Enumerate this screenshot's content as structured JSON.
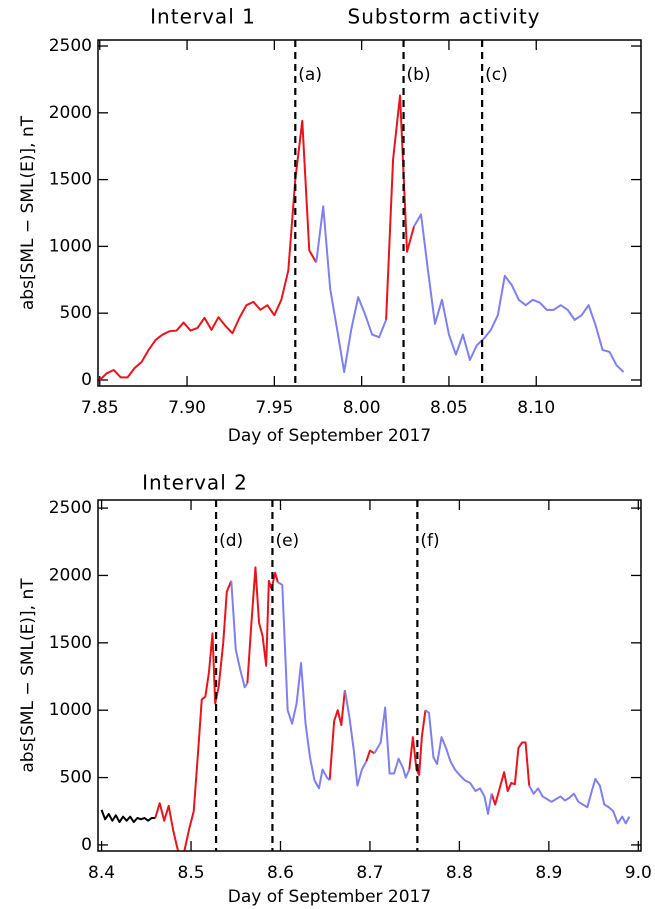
{
  "chart_data": [
    {
      "type": "line",
      "title": "Interval 1",
      "annotation": "Substorm activity",
      "xlabel": "Day of September 2017",
      "ylabel": "abs[SML − SML(E)], nT",
      "xlim": [
        7.849,
        8.16
      ],
      "ylim": [
        -45,
        2545
      ],
      "xticks": [
        7.85,
        {
          "value": 7.9,
          "label": "7.90"
        },
        7.95,
        {
          "value": 8.0,
          "label": "8.00"
        },
        8.05,
        {
          "value": 8.1,
          "label": "8.10"
        }
      ],
      "yticks": [
        0,
        500,
        1000,
        1500,
        2000,
        2500
      ],
      "markers": [
        {
          "x": 7.962,
          "label": "(a)"
        },
        {
          "x": 8.024,
          "label": "(b)"
        },
        {
          "x": 8.069,
          "label": "(c)"
        }
      ],
      "series": [
        {
          "color": "#e8141c",
          "x": [
            7.85,
            7.854,
            7.858,
            7.862,
            7.866,
            7.87,
            7.874,
            7.878,
            7.882,
            7.886,
            7.89,
            7.894,
            7.898,
            7.902,
            7.906,
            7.91,
            7.914,
            7.918,
            7.922,
            7.926,
            7.93,
            7.934,
            7.938,
            7.942,
            7.946,
            7.95,
            7.954,
            7.958,
            7.962,
            7.966,
            7.97,
            7.974,
            null,
            8.014,
            8.018,
            8.022,
            8.026,
            8.03
          ],
          "values": [
            0,
            50,
            75,
            20,
            20,
            90,
            135,
            225,
            300,
            340,
            365,
            370,
            430,
            370,
            390,
            465,
            375,
            470,
            405,
            350,
            465,
            560,
            585,
            525,
            560,
            485,
            600,
            820,
            1500,
            1940,
            970,
            880,
            null,
            450,
            1650,
            2130,
            960,
            1150
          ]
        },
        {
          "color": "#7f7ff0",
          "x": [
            7.974,
            7.978,
            7.982,
            7.986,
            7.99,
            7.994,
            7.998,
            8.002,
            8.006,
            8.01,
            8.014,
            null,
            8.03,
            8.034,
            8.038,
            8.042,
            8.046,
            8.05,
            8.054,
            8.058,
            8.062,
            8.066,
            8.07,
            8.074,
            8.078,
            8.082,
            8.086,
            8.09,
            8.094,
            8.098,
            8.102,
            8.106,
            8.11,
            8.114,
            8.118,
            8.122,
            8.126,
            8.13,
            8.134,
            8.138,
            8.142,
            8.146,
            8.15
          ],
          "values": [
            880,
            1300,
            680,
            375,
            60,
            375,
            620,
            490,
            340,
            320,
            450,
            null,
            1150,
            1240,
            820,
            420,
            600,
            340,
            190,
            340,
            150,
            260,
            310,
            375,
            485,
            780,
            710,
            600,
            560,
            600,
            580,
            525,
            525,
            560,
            525,
            450,
            485,
            560,
            410,
            225,
            210,
            110,
            60
          ]
        }
      ]
    },
    {
      "type": "line",
      "title": "Interval 2",
      "xlabel": "Day of September 2017",
      "ylabel": "abs[SML − SML(E)], nT",
      "xlim": [
        8.396,
        9.003
      ],
      "ylim": [
        -45,
        2560
      ],
      "xticks": [
        8.4,
        8.5,
        8.6,
        8.7,
        8.8,
        8.9,
        {
          "value": 9.0,
          "label": "9.0"
        }
      ],
      "yticks": [
        0,
        500,
        1000,
        1500,
        2000,
        2500
      ],
      "markers": [
        {
          "x": 8.528,
          "label": "(d)"
        },
        {
          "x": 8.591,
          "label": "(e)"
        },
        {
          "x": 8.753,
          "label": "(f)"
        }
      ],
      "series": [
        {
          "color": "#000000",
          "x": [
            8.4,
            8.404,
            8.408,
            8.412,
            8.416,
            8.42,
            8.424,
            8.428,
            8.432,
            8.436,
            8.44,
            8.444,
            8.448,
            8.452,
            8.456,
            8.46
          ],
          "values": [
            260,
            190,
            230,
            180,
            220,
            170,
            210,
            180,
            210,
            170,
            200,
            190,
            200,
            180,
            200,
            200
          ]
        },
        {
          "color": "#e8141c",
          "x": [
            8.46,
            8.465,
            8.47,
            8.475,
            8.48,
            8.486,
            8.492,
            8.498,
            8.503,
            8.508,
            8.512,
            8.516,
            8.52,
            8.524,
            8.527,
            8.531,
            8.536,
            8.54,
            8.545,
            null,
            8.563,
            8.567,
            8.572,
            8.576,
            8.58,
            8.584,
            8.587,
            8.59,
            8.594,
            8.597,
            null,
            8.655,
            8.66,
            8.664,
            8.668,
            8.672,
            null,
            8.696,
            8.7,
            8.705,
            null,
            8.744,
            8.748,
            8.752,
            8.755,
            8.758,
            8.762,
            null,
            8.836,
            8.84,
            8.845,
            8.85,
            8.854,
            8.858,
            8.862,
            8.866,
            8.87,
            8.874,
            8.878
          ],
          "values": [
            200,
            310,
            180,
            290,
            110,
            -60,
            -60,
            120,
            250,
            700,
            1080,
            1100,
            1280,
            1570,
            1050,
            1180,
            1500,
            1880,
            1960,
            null,
            1200,
            1600,
            2060,
            1650,
            1550,
            1330,
            1960,
            1900,
            2020,
            1950,
            null,
            480,
            920,
            1000,
            890,
            1150,
            null,
            620,
            700,
            680,
            null,
            560,
            800,
            560,
            520,
            800,
            1000,
            null,
            380,
            300,
            420,
            540,
            400,
            460,
            450,
            720,
            760,
            760,
            440
          ]
        },
        {
          "color": "#7f7ff0",
          "x": [
            8.545,
            8.55,
            8.555,
            8.56,
            8.563,
            null,
            8.597,
            8.602,
            8.608,
            8.613,
            8.618,
            8.623,
            8.628,
            8.633,
            8.638,
            8.643,
            8.647,
            8.652,
            8.655,
            null,
            8.672,
            8.677,
            8.682,
            8.686,
            8.691,
            8.696,
            null,
            8.705,
            8.712,
            8.717,
            8.722,
            8.727,
            8.732,
            8.737,
            8.74,
            8.744,
            null,
            8.762,
            8.766,
            8.771,
            8.775,
            8.78,
            8.785,
            8.79,
            8.795,
            8.8,
            8.806,
            8.812,
            8.818,
            8.823,
            8.828,
            8.832,
            8.836,
            null,
            8.878,
            8.883,
            8.888,
            8.893,
            8.898,
            8.903,
            8.908,
            8.913,
            8.918,
            8.923,
            8.928,
            8.933,
            8.938,
            8.943,
            8.948,
            8.952,
            8.957,
            8.962,
            8.967,
            8.972,
            8.977,
            8.982,
            8.986,
            8.99
          ],
          "values": [
            1960,
            1450,
            1300,
            1170,
            1200,
            null,
            1950,
            1930,
            1000,
            900,
            1050,
            1350,
            900,
            650,
            480,
            420,
            560,
            500,
            480,
            null,
            1150,
            950,
            700,
            440,
            560,
            620,
            null,
            680,
            760,
            1020,
            530,
            530,
            640,
            570,
            500,
            560,
            null,
            1000,
            980,
            650,
            600,
            800,
            720,
            620,
            560,
            520,
            480,
            460,
            400,
            420,
            360,
            230,
            380,
            null,
            440,
            380,
            420,
            360,
            340,
            320,
            340,
            360,
            330,
            350,
            380,
            320,
            300,
            280,
            400,
            490,
            440,
            300,
            280,
            250,
            160,
            210,
            160,
            210
          ]
        }
      ]
    }
  ]
}
